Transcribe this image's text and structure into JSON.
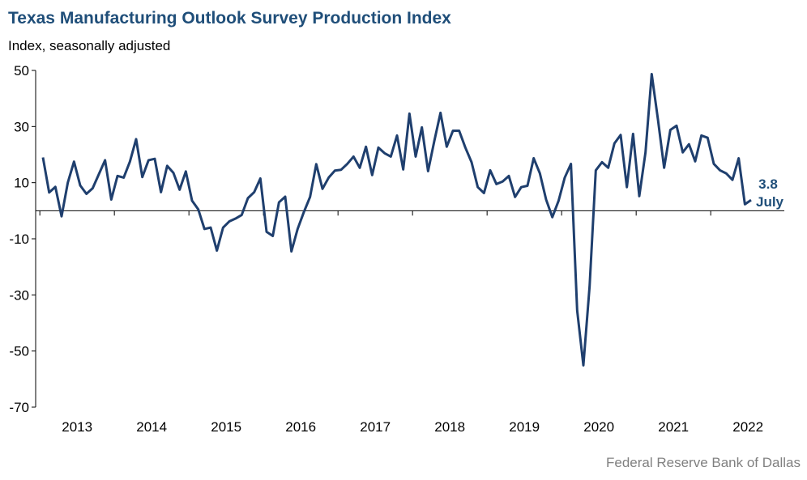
{
  "chart_data": {
    "type": "line",
    "title": "Texas Manufacturing Outlook Survey Production Index",
    "y_label": "Index, seasonally adjusted",
    "source": "Federal Reserve Bank of Dallas",
    "annotations": [
      "3.8",
      "July"
    ],
    "categories": [
      null,
      null,
      null,
      null,
      null,
      null,
      "2013",
      null,
      null,
      null,
      null,
      null,
      null,
      null,
      null,
      null,
      null,
      null,
      "2014",
      null,
      null,
      null,
      null,
      null,
      null,
      null,
      null,
      null,
      null,
      null,
      "2015",
      null,
      null,
      null,
      null,
      null,
      null,
      null,
      null,
      null,
      null,
      null,
      "2016",
      null,
      null,
      null,
      null,
      null,
      null,
      null,
      null,
      null,
      null,
      null,
      "2017",
      null,
      null,
      null,
      null,
      null,
      null,
      null,
      null,
      null,
      null,
      null,
      "2018",
      null,
      null,
      null,
      null,
      null,
      null,
      null,
      null,
      null,
      null,
      null,
      "2019",
      null,
      null,
      null,
      null,
      null,
      null,
      null,
      null,
      null,
      null,
      null,
      "2020",
      null,
      null,
      null,
      null,
      null,
      null,
      null,
      null,
      null,
      null,
      null,
      "2021",
      null,
      null,
      null,
      null,
      null,
      null,
      null,
      null,
      null,
      null,
      null,
      "2022"
    ],
    "series": [
      {
        "name": "Production Index",
        "color": "#1f3f6e",
        "values": [
          19,
          6.5,
          8.5,
          -2,
          10,
          17.5,
          9,
          6,
          8,
          13,
          18,
          4,
          12.4,
          11.8,
          17.5,
          25.5,
          12,
          18,
          18.5,
          6.6,
          16,
          13.5,
          7.5,
          14,
          3.6,
          0.5,
          -6.5,
          -6,
          -14.2,
          -6,
          -3.8,
          -2.8,
          -1.5,
          4.5,
          6.6,
          11.5,
          -7.5,
          -9,
          3,
          5,
          -14.5,
          -6.5,
          -0.5,
          4.9,
          16.6,
          7.8,
          11.8,
          14.3,
          14.6,
          16.7,
          19.3,
          15.3,
          22.8,
          12.7,
          22.5,
          20.5,
          19.3,
          26.8,
          14.7,
          34.6,
          19.3,
          29.7,
          14.1,
          24.8,
          34.9,
          22.8,
          28.5,
          28.5,
          22.5,
          17.3,
          8.4,
          6.3,
          14.4,
          9.5,
          10.4,
          12.4,
          4.9,
          8.4,
          8.9,
          18.7,
          13.3,
          4,
          -2.3,
          3.5,
          11.8,
          16.7,
          -35.5,
          -55.1,
          -27,
          14.4,
          17.3,
          15.3,
          24,
          27,
          8.4,
          27.4,
          5.2,
          20.8,
          48.7,
          32.6,
          15.3,
          28.8,
          30.3,
          20.8,
          23.7,
          17.6,
          26.8,
          26,
          16.7,
          14.4,
          13.3,
          11,
          18.7,
          2.3,
          3.8
        ]
      }
    ],
    "ylim": [
      -70,
      50
    ],
    "yticks": [
      50,
      30,
      10,
      -10,
      -30,
      -50,
      -70
    ],
    "grid": false
  }
}
